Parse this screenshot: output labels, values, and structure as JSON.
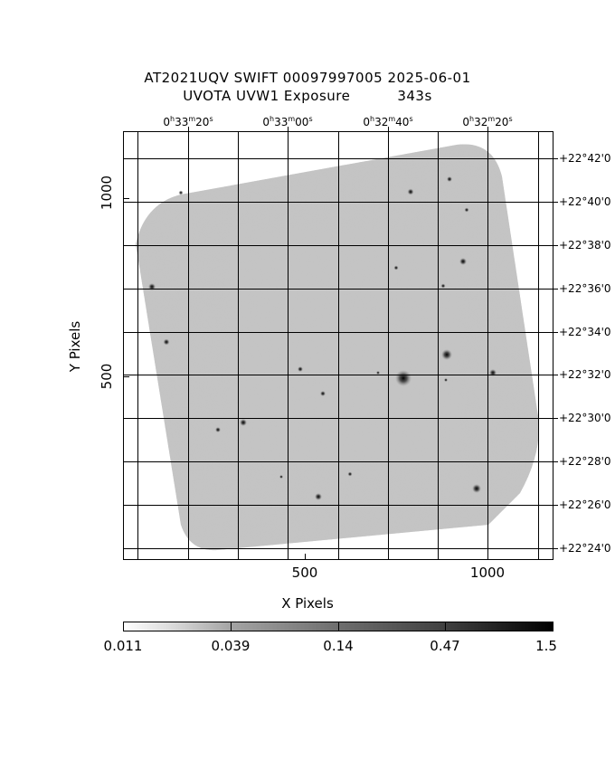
{
  "title_line1": "AT2021UQV SWIFT 00097997005 2025-06-01",
  "title_line2_left": "UVOTA UVW1 Exposure",
  "title_line2_right": "343s",
  "x_axis_label": "X Pixels",
  "y_axis_label": "Y Pixels",
  "x_ticks": [
    "500",
    "1000"
  ],
  "y_ticks": [
    "500",
    "1000"
  ],
  "ra_labels": [
    {
      "h": "0",
      "m": "33",
      "s": "20"
    },
    {
      "h": "0",
      "m": "33",
      "s": "00"
    },
    {
      "h": "0",
      "m": "32",
      "s": "40"
    },
    {
      "h": "0",
      "m": "32",
      "s": "20"
    }
  ],
  "dec_labels": [
    "+22°42'0",
    "+22°40'0",
    "+22°38'0",
    "+22°36'0",
    "+22°34'0",
    "+22°32'0",
    "+22°30'0",
    "+22°28'0",
    "+22°26'0",
    "+22°24'0"
  ],
  "colorbar_labels": [
    "0.011",
    "0.039",
    "0.14",
    "0.47",
    "1.5"
  ]
}
